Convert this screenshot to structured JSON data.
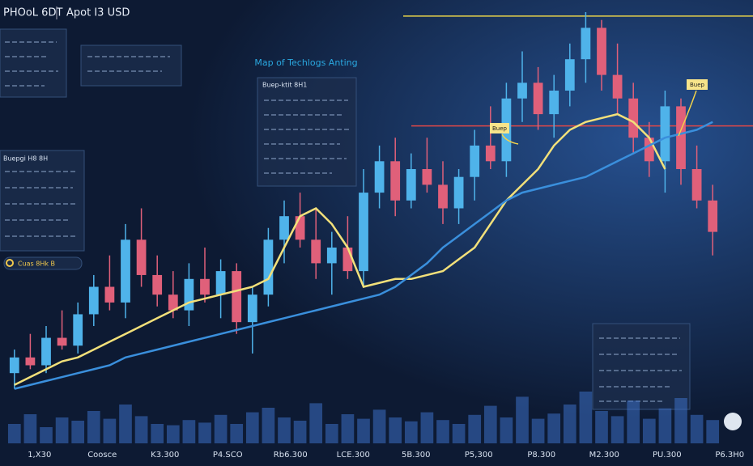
{
  "chart_data": {
    "type": "candlestick",
    "title": "PHOoL 6DT",
    "subtitle": "Apot I3 USD",
    "heading": "Map of Techlogs Anting",
    "panel_title": "Buep-ktit 8H1",
    "side_title": "Buepgi H8 8H",
    "pill_label": "Cuas 8Hk B",
    "annotations": [
      "Buep",
      "Buep"
    ],
    "x_labels": [
      "1,X30",
      "Coosce",
      "K3.300",
      "P4.SCO",
      "Rb6.300",
      "LCE.300",
      "5B.300",
      "P5,300",
      "P8.300",
      "M2.300",
      "PU.300",
      "P6.3H0"
    ],
    "ylim": [
      0,
      100
    ],
    "up_color": "#4fb3ea",
    "down_color": "#e0607a",
    "open": [
      8,
      12,
      10,
      17,
      15,
      23,
      30,
      26,
      42,
      33,
      28,
      24,
      32,
      28,
      34,
      21,
      28,
      42,
      48,
      42,
      36,
      40,
      34,
      54,
      62,
      52,
      60,
      56,
      50,
      58,
      66,
      62,
      78,
      82,
      74,
      80,
      88,
      96,
      84,
      78,
      68,
      62,
      76,
      60,
      52
    ],
    "high": [
      14,
      18,
      20,
      24,
      26,
      33,
      38,
      46,
      50,
      38,
      34,
      36,
      40,
      37,
      36,
      30,
      45,
      52,
      54,
      50,
      44,
      48,
      60,
      66,
      68,
      64,
      68,
      62,
      60,
      70,
      76,
      82,
      90,
      86,
      84,
      92,
      100,
      98,
      92,
      82,
      72,
      80,
      78,
      66,
      56
    ],
    "low": [
      4,
      9,
      8,
      14,
      13,
      20,
      24,
      22,
      30,
      25,
      22,
      20,
      26,
      22,
      18,
      13,
      25,
      36,
      40,
      32,
      28,
      32,
      30,
      50,
      48,
      50,
      54,
      46,
      46,
      52,
      60,
      58,
      72,
      70,
      68,
      76,
      82,
      80,
      74,
      64,
      58,
      54,
      56,
      50,
      38
    ],
    "close": [
      12,
      10,
      17,
      15,
      23,
      30,
      26,
      42,
      33,
      28,
      24,
      32,
      28,
      34,
      21,
      28,
      42,
      48,
      42,
      36,
      40,
      34,
      54,
      62,
      52,
      60,
      56,
      50,
      58,
      66,
      62,
      78,
      82,
      74,
      80,
      88,
      96,
      84,
      78,
      68,
      62,
      76,
      60,
      52,
      44
    ],
    "lines": [
      {
        "color": "#f2e07a",
        "values": [
          5,
          7,
          9,
          11,
          12,
          14,
          16,
          18,
          20,
          22,
          24,
          26,
          27,
          28,
          29,
          30,
          32,
          40,
          48,
          50,
          46,
          40,
          30,
          31,
          32,
          32,
          33,
          34,
          37,
          40,
          46,
          52,
          56,
          60,
          66,
          70,
          72,
          73,
          74,
          72,
          68,
          60,
          null,
          null,
          null
        ]
      },
      {
        "color": "#3a8fdc",
        "values": [
          4,
          5,
          6,
          7,
          8,
          9,
          10,
          12,
          13,
          14,
          15,
          16,
          17,
          18,
          19,
          20,
          21,
          22,
          23,
          24,
          25,
          26,
          27,
          28,
          30,
          33,
          36,
          40,
          43,
          46,
          49,
          52,
          54,
          55,
          56,
          57,
          58,
          60,
          62,
          64,
          66,
          68,
          69,
          70,
          72
        ]
      }
    ],
    "levels": [
      {
        "value": 99,
        "color": "#e8d24a"
      },
      {
        "value": 71,
        "color": "#e04848"
      }
    ],
    "volume": {
      "ylim": [
        0,
        100
      ],
      "color": "#3d6fc4",
      "values": [
        30,
        45,
        25,
        40,
        35,
        50,
        38,
        60,
        42,
        30,
        28,
        36,
        32,
        44,
        30,
        48,
        55,
        40,
        35,
        62,
        30,
        45,
        38,
        52,
        40,
        34,
        48,
        36,
        30,
        44,
        58,
        40,
        72,
        38,
        46,
        60,
        80,
        50,
        42,
        66,
        38,
        54,
        70,
        44,
        36
      ]
    }
  }
}
